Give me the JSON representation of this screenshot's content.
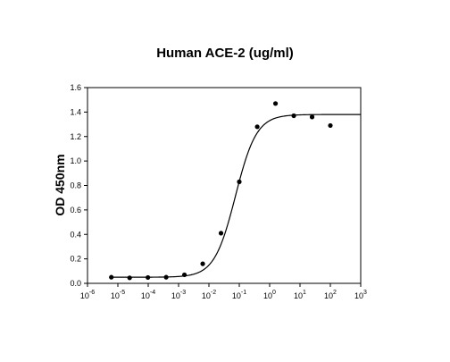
{
  "chart_data": {
    "type": "scatter",
    "title": "Human ACE-2 (ug/ml)",
    "xlabel": "",
    "ylabel": "OD 450nm",
    "x_scale": "log10",
    "xlim": [
      1e-06,
      1000
    ],
    "ylim": [
      0,
      1.6
    ],
    "x_ticks": [
      {
        "base": "10",
        "exp": "-6"
      },
      {
        "base": "10",
        "exp": "-5"
      },
      {
        "base": "10",
        "exp": "-4"
      },
      {
        "base": "10",
        "exp": "-3"
      },
      {
        "base": "10",
        "exp": "-2"
      },
      {
        "base": "10",
        "exp": "-1"
      },
      {
        "base": "10",
        "exp": "0"
      },
      {
        "base": "10",
        "exp": "1"
      },
      {
        "base": "10",
        "exp": "2"
      },
      {
        "base": "10",
        "exp": "3"
      }
    ],
    "y_ticks": [
      "0.0",
      "0.2",
      "0.4",
      "0.6",
      "0.8",
      "1.0",
      "1.2",
      "1.4",
      "1.6"
    ],
    "grid": false,
    "points": [
      {
        "x": 6.1e-06,
        "y": 0.05
      },
      {
        "x": 2.44e-05,
        "y": 0.045
      },
      {
        "x": 9.77e-05,
        "y": 0.048
      },
      {
        "x": 0.00039,
        "y": 0.05
      },
      {
        "x": 0.00156,
        "y": 0.07
      },
      {
        "x": 0.00625,
        "y": 0.16
      },
      {
        "x": 0.025,
        "y": 0.41
      },
      {
        "x": 0.1,
        "y": 0.83
      },
      {
        "x": 0.39,
        "y": 1.28
      },
      {
        "x": 1.56,
        "y": 1.47
      },
      {
        "x": 6.25,
        "y": 1.37
      },
      {
        "x": 25,
        "y": 1.36
      },
      {
        "x": 100,
        "y": 1.29
      }
    ],
    "fit_curve": {
      "model": "4PL",
      "bottom": 0.05,
      "top": 1.38,
      "ec50": 0.075,
      "hill": 1.25
    }
  }
}
